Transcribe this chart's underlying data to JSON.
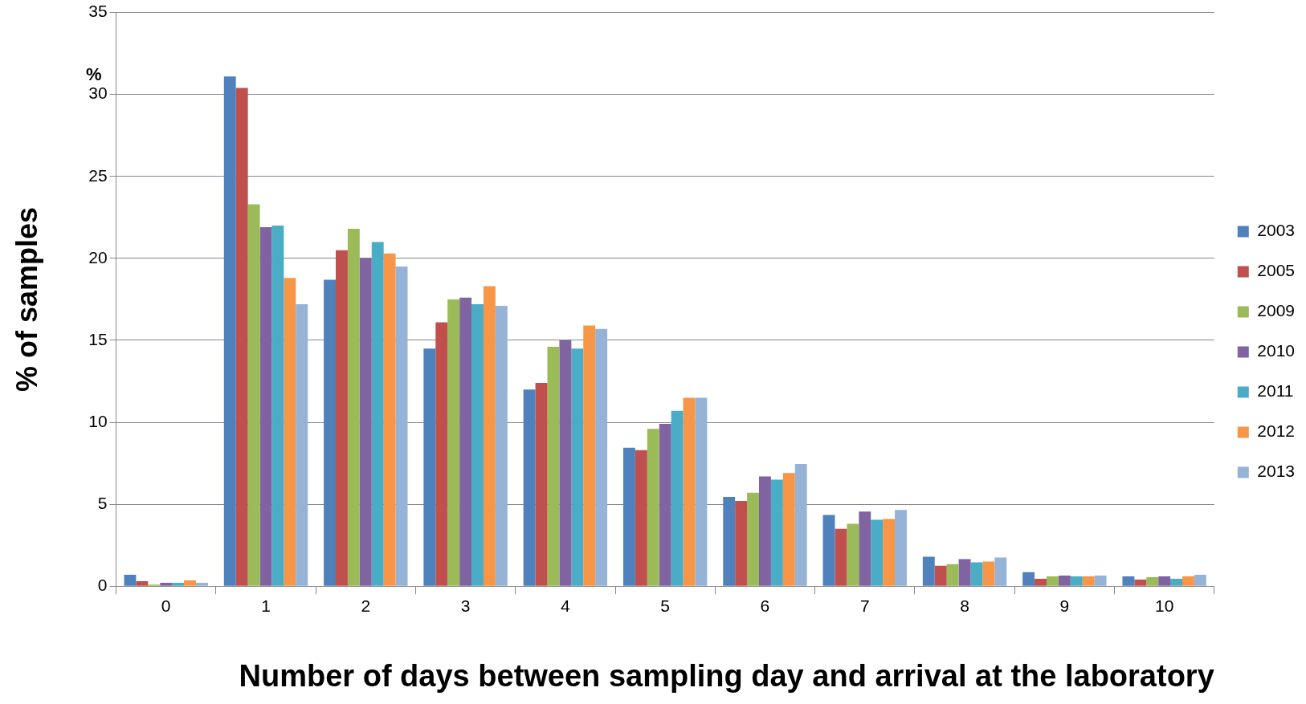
{
  "chart_data": {
    "type": "bar",
    "xlabel": "Number of days between sampling day and arrival at the laboratory",
    "ylabel": "% of samples",
    "annotations": [
      "%"
    ],
    "categories": [
      "0",
      "1",
      "2",
      "3",
      "4",
      "5",
      "6",
      "7",
      "8",
      "9",
      "10"
    ],
    "series": [
      {
        "name": "2003",
        "color": "#4f81bd",
        "values": [
          0.7,
          31.1,
          18.7,
          14.5,
          12.0,
          8.45,
          5.45,
          4.35,
          1.8,
          0.85,
          0.6
        ]
      },
      {
        "name": "2005",
        "color": "#c0504d",
        "values": [
          0.3,
          30.4,
          20.5,
          16.1,
          12.4,
          8.3,
          5.2,
          3.5,
          1.25,
          0.45,
          0.4
        ]
      },
      {
        "name": "2009",
        "color": "#9bbb59",
        "values": [
          0.1,
          23.3,
          21.8,
          17.5,
          14.6,
          9.6,
          5.7,
          3.8,
          1.35,
          0.6,
          0.55
        ]
      },
      {
        "name": "2010",
        "color": "#8064a2",
        "values": [
          0.2,
          21.9,
          20.0,
          17.6,
          15.0,
          9.9,
          6.7,
          4.55,
          1.65,
          0.65,
          0.6
        ]
      },
      {
        "name": "2011",
        "color": "#4bacc6",
        "values": [
          0.2,
          22.0,
          21.0,
          17.2,
          14.5,
          10.7,
          6.5,
          4.05,
          1.45,
          0.6,
          0.45
        ]
      },
      {
        "name": "2012",
        "color": "#f79646",
        "values": [
          0.35,
          18.8,
          20.3,
          18.3,
          15.9,
          11.5,
          6.9,
          4.1,
          1.5,
          0.6,
          0.6
        ]
      },
      {
        "name": "2013",
        "color": "#95b3d7",
        "values": [
          0.2,
          17.2,
          19.5,
          17.1,
          15.7,
          11.5,
          7.45,
          4.65,
          1.75,
          0.65,
          0.7
        ]
      }
    ],
    "ylim": [
      0,
      35
    ],
    "yticks": [
      0,
      5,
      10,
      15,
      20,
      25,
      30,
      35
    ],
    "grid": "y",
    "legend": "right"
  }
}
